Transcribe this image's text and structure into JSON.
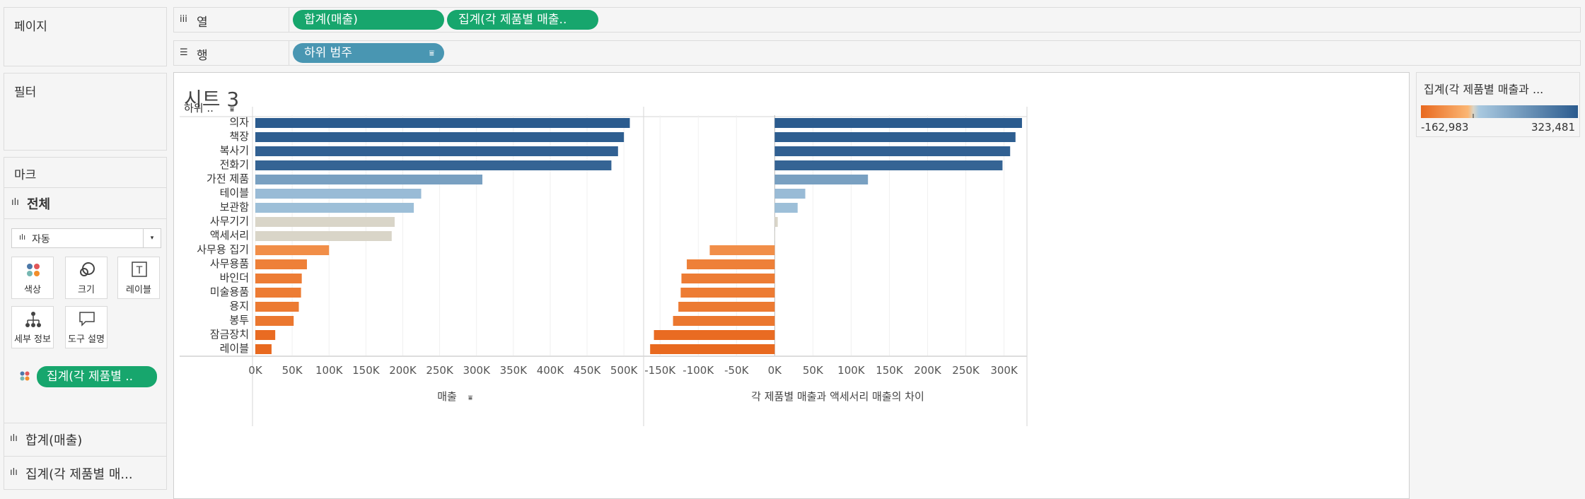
{
  "pages_panel": {
    "title": "페이지"
  },
  "filters_panel": {
    "title": "필터"
  },
  "marks_panel": {
    "title": "마크",
    "all_label": "전체",
    "mark_type": "자동",
    "buttons": {
      "color": "색상",
      "size": "크기",
      "label": "레이블",
      "detail": "세부 정보",
      "tooltip": "도구 설명"
    },
    "color_pill": "집계(각 제품별 ..",
    "cards": [
      "합계(매출)",
      "집계(각 제품별 매..."
    ]
  },
  "columns_shelf": {
    "label": "열",
    "pills": [
      "합계(매출)",
      "집계(각 제품별 매출.."
    ]
  },
  "rows_shelf": {
    "label": "행",
    "pills": [
      "하위 범주"
    ]
  },
  "sheet": {
    "title": "시트 3",
    "row_header": "하위 .."
  },
  "legend": {
    "title": "집계(각 제품별 매출과 ...",
    "min_label": "-162,983",
    "max_label": "323,481",
    "colors": {
      "low": "#e8691f",
      "mid": "#d9d5c8",
      "high": "#2b5b8e"
    }
  },
  "chart_data": {
    "type": "bar",
    "orientation": "horizontal",
    "categories": [
      "의자",
      "책장",
      "복사기",
      "전화기",
      "가전 제품",
      "테이블",
      "보관함",
      "사무기기",
      "액세서리",
      "사무용 집기",
      "사무용품",
      "바인더",
      "미술용품",
      "용지",
      "봉투",
      "잠금장치",
      "레이블"
    ],
    "series": [
      {
        "name": "매출",
        "values": [
          508000,
          500000,
          492000,
          483000,
          308000,
          225000,
          215000,
          189000,
          185000,
          100000,
          70000,
          63000,
          62000,
          59000,
          52000,
          27000,
          22000
        ],
        "xlim": [
          0,
          520000
        ],
        "ticks": [
          0,
          50000,
          100000,
          150000,
          200000,
          250000,
          300000,
          350000,
          400000,
          450000,
          500000
        ],
        "tick_labels": [
          "0K",
          "50K",
          "100K",
          "150K",
          "200K",
          "250K",
          "300K",
          "350K",
          "400K",
          "450K",
          "500K"
        ],
        "axis_title": "매출"
      },
      {
        "name": "각 제품별 매출과 액세서리 매출의 차이",
        "values": [
          323481,
          315000,
          308000,
          298000,
          122000,
          40000,
          30000,
          4000,
          0,
          -85000,
          -115000,
          -122000,
          -123000,
          -126000,
          -133000,
          -158000,
          -162983
        ],
        "xlim": [
          -165000,
          330000
        ],
        "ticks": [
          -150000,
          -100000,
          -50000,
          0,
          50000,
          100000,
          150000,
          200000,
          250000,
          300000
        ],
        "tick_labels": [
          "-150K",
          "-100K",
          "-50K",
          "0K",
          "50K",
          "100K",
          "150K",
          "200K",
          "250K",
          "300K"
        ],
        "axis_title": "각 제품별 매출과 액세서리 매출의 차이"
      }
    ],
    "color_by": "series.1",
    "color_range": [
      -162983,
      323481
    ],
    "grid": true
  }
}
